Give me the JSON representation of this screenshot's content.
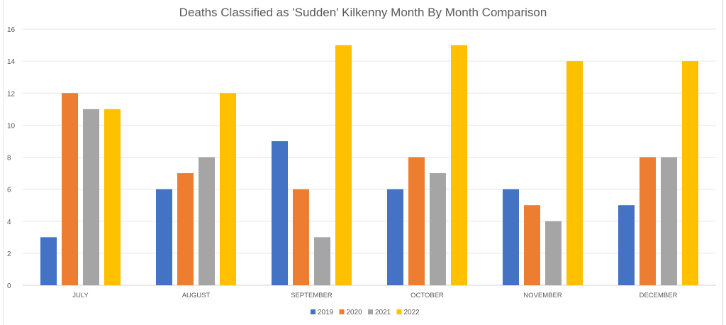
{
  "chart_data": {
    "type": "bar",
    "title": "Deaths Classified as 'Sudden' Kilkenny Month By Month Comparison",
    "xlabel": "",
    "ylabel": "",
    "categories": [
      "JULY",
      "AUGUST",
      "SEPTEMBER",
      "OCTOBER",
      "NOVEMBER",
      "DECEMBER"
    ],
    "series": [
      {
        "name": "2019",
        "color": "#4472C4",
        "values": [
          3,
          6,
          9,
          6,
          6,
          5
        ]
      },
      {
        "name": "2020",
        "color": "#ED7D31",
        "values": [
          12,
          7,
          6,
          8,
          5,
          8
        ]
      },
      {
        "name": "2021",
        "color": "#A5A5A5",
        "values": [
          11,
          8,
          3,
          7,
          4,
          8
        ]
      },
      {
        "name": "2022",
        "color": "#FFC000",
        "values": [
          11,
          12,
          15,
          15,
          14,
          14
        ]
      }
    ],
    "ylim": [
      0,
      16
    ],
    "yticks": [
      "0",
      "2",
      "4",
      "6",
      "8",
      "10",
      "12",
      "14",
      "16"
    ],
    "grid": true,
    "legend": "bottom"
  }
}
